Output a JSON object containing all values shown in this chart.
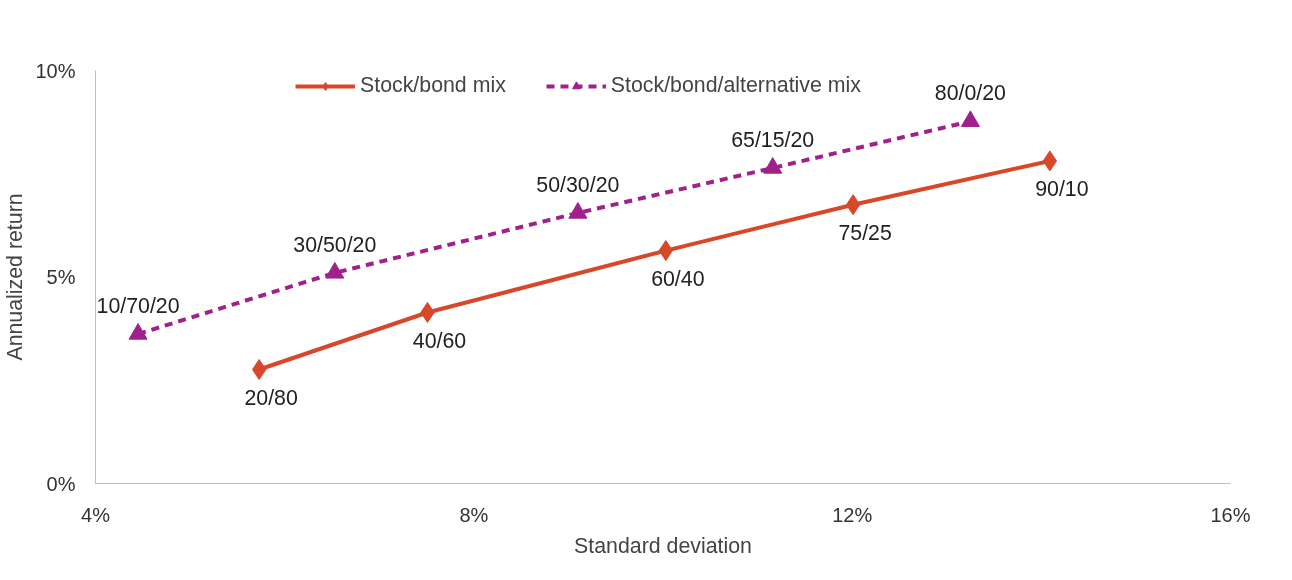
{
  "chart_data": {
    "type": "line",
    "xlabel": "Standard deviation",
    "ylabel": "Annualized return",
    "xlim": [
      4,
      16
    ],
    "ylim": [
      0,
      10
    ],
    "xticks": [
      {
        "value": 4,
        "label": "4%"
      },
      {
        "value": 8,
        "label": "8%"
      },
      {
        "value": 12,
        "label": "12%"
      },
      {
        "value": 16,
        "label": "16%"
      }
    ],
    "yticks": [
      {
        "value": 0,
        "label": "0%"
      },
      {
        "value": 5,
        "label": "5%"
      },
      {
        "value": 10,
        "label": "10%"
      }
    ],
    "grid": false,
    "legend": "top",
    "series": [
      {
        "name": "Stock/bond mix",
        "color": "#d9472b",
        "marker": "diamond",
        "line_style": "solid",
        "x": [
          5.73,
          7.51,
          10.03,
          12.01,
          14.09
        ],
        "values": [
          2.76,
          4.14,
          5.64,
          6.75,
          7.81
        ],
        "value_labels": [
          "20/80",
          "40/60",
          "60/40",
          "75/25",
          "90/10"
        ]
      },
      {
        "name": "Stock/bond/alternative mix",
        "color": "#a0208c",
        "marker": "triangle",
        "line_style": "dashed",
        "x": [
          4.45,
          6.53,
          9.1,
          11.16,
          13.25
        ],
        "values": [
          3.62,
          5.1,
          6.55,
          7.64,
          8.77
        ],
        "value_labels": [
          "10/70/20",
          "30/50/20",
          "50/30/20",
          "65/15/20",
          "80/0/20"
        ]
      }
    ]
  }
}
